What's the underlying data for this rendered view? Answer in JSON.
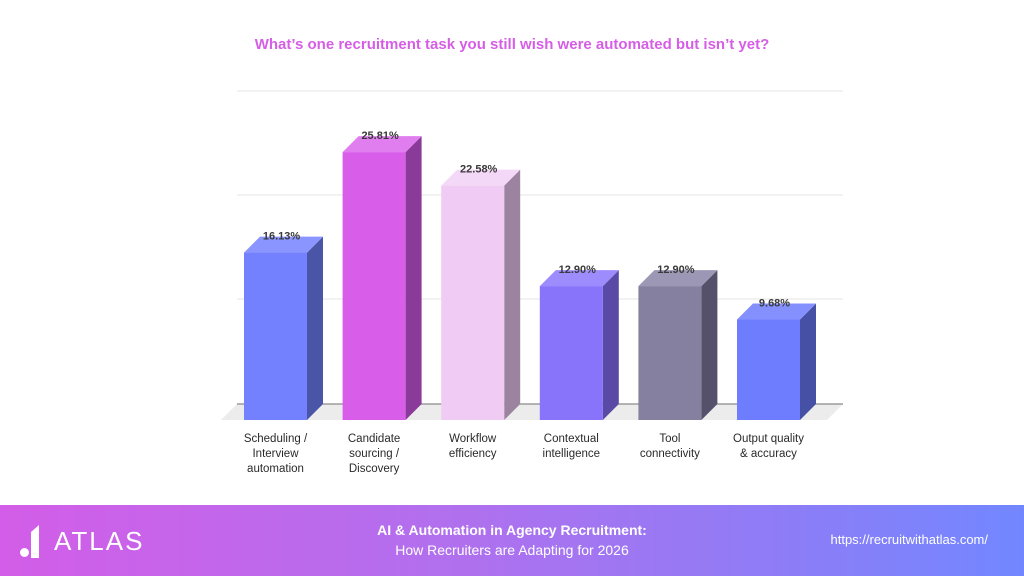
{
  "chart_data": {
    "type": "bar",
    "style": "3d-column",
    "title": "What’s one recruitment task you still wish were automated but isn’t yet?",
    "xlabel": "",
    "ylabel": "",
    "categories": [
      "Scheduling / Interview automation",
      "Candidate sourcing / Discovery",
      "Workflow efficiency",
      "Contextual intelligence",
      "Tool connectivity",
      "Output quality & accuracy"
    ],
    "values": [
      16.13,
      25.81,
      22.58,
      12.9,
      12.9,
      9.68
    ],
    "value_labels": [
      "16.13%",
      "25.81%",
      "22.58%",
      "12.90%",
      "12.90%",
      "9.68%"
    ],
    "unit": "%",
    "ylim": [
      0,
      30
    ],
    "grid": true,
    "axis_tick_labels_visible": false,
    "legend": "none",
    "bar_colors": [
      {
        "front": "#7381ff",
        "side": "#4a55a8",
        "top": "#8a95ff"
      },
      {
        "front": "#d85eea",
        "side": "#8a3a98",
        "top": "#e07ef0"
      },
      {
        "front": "#f0ccf4",
        "side": "#9c84a0",
        "top": "#f4d8f7"
      },
      {
        "front": "#8874fb",
        "side": "#5a4aa6",
        "top": "#9d8cfd"
      },
      {
        "front": "#8680a0",
        "side": "#55516a",
        "top": "#9c97b4"
      },
      {
        "front": "#6e7dfd",
        "side": "#4651a6",
        "top": "#8590ff"
      }
    ]
  },
  "chart": {
    "title": "What’s one recruitment task you still wish were automated but isn’t yet?",
    "category_labels": [
      "Scheduling /\nInterview\nautomation",
      "Candidate\nsourcing /\nDiscovery",
      "Workflow\nefficiency",
      "Contextual\nintelligence",
      "Tool\nconnectivity",
      "Output quality\n& accuracy"
    ]
  },
  "footer": {
    "logo_text": "ATLAS",
    "headline": "AI & Automation in Agency Recruitment:",
    "subheadline": "How Recruiters are Adapting for 2026",
    "url": "https://recruitwithatlas.com/"
  },
  "colors": {
    "title": "#d65ee6",
    "footer_gradient_start": "#d35de8",
    "footer_gradient_end": "#7287ff"
  }
}
